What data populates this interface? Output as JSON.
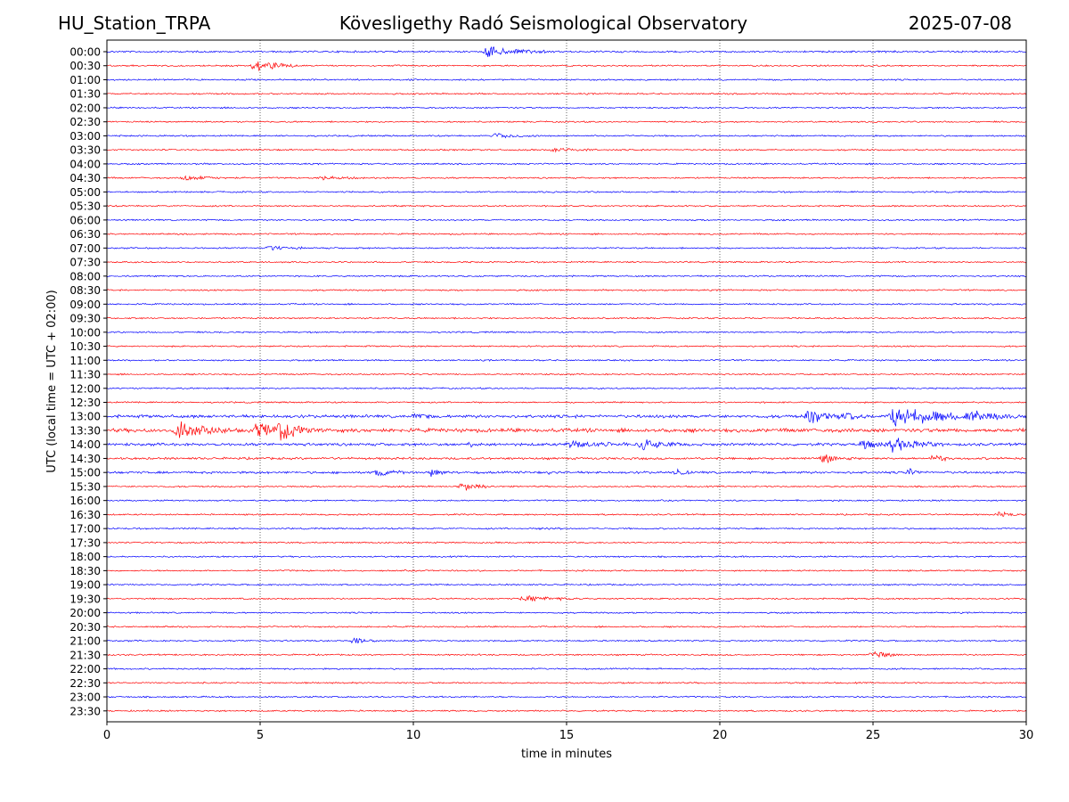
{
  "header": {
    "station": "HU_Station_TRPA",
    "observatory": "Kövesligethy Radó Seismological Observatory",
    "date": "2025-07-08"
  },
  "chart_data": {
    "type": "line",
    "title": "Kövesligethy Radó Seismological Observatory",
    "xlabel": "time in minutes",
    "ylabel": "UTC (local time = UTC + 02:00)",
    "xlim": [
      0,
      30
    ],
    "x_ticks": [
      0,
      5,
      10,
      15,
      20,
      25,
      30
    ],
    "vertical_gridlines_at_minutes": [
      5,
      10,
      15,
      20,
      25
    ],
    "grid": "vertical dotted lines only",
    "colors": {
      "even_hour_trace": "#0000ff",
      "half_hour_trace": "#ff0000",
      "grid": "#000000"
    },
    "rows": [
      "00:00",
      "00:30",
      "01:00",
      "01:30",
      "02:00",
      "02:30",
      "03:00",
      "03:30",
      "04:00",
      "04:30",
      "05:00",
      "05:30",
      "06:00",
      "06:30",
      "07:00",
      "07:30",
      "08:00",
      "08:30",
      "09:00",
      "09:30",
      "10:00",
      "10:30",
      "11:00",
      "11:30",
      "12:00",
      "12:30",
      "13:00",
      "13:30",
      "14:00",
      "14:30",
      "15:00",
      "15:30",
      "16:00",
      "16:30",
      "17:00",
      "17:30",
      "18:00",
      "18:30",
      "19:00",
      "19:30",
      "20:00",
      "20:30",
      "21:00",
      "21:30",
      "22:00",
      "22:30",
      "23:00",
      "23:30"
    ],
    "noise_amplitude_by_row": [
      1.2,
      1,
      1,
      1,
      1,
      1,
      1,
      1,
      1,
      1,
      1,
      1,
      1,
      1,
      1,
      1,
      1,
      1,
      1,
      1,
      1,
      1,
      1,
      1,
      1,
      1,
      2.0,
      2.5,
      1.8,
      1.5,
      1.5,
      1,
      1,
      1,
      1,
      1,
      1,
      1,
      1,
      1,
      1,
      1,
      1,
      1,
      1,
      1,
      1,
      1
    ],
    "events": [
      {
        "row": 0,
        "start_min": 12.3,
        "duration_min": 2.0,
        "amplitude": 8
      },
      {
        "row": 1,
        "start_min": 4.7,
        "duration_min": 1.8,
        "amplitude": 7
      },
      {
        "row": 6,
        "start_min": 12.6,
        "duration_min": 1.5,
        "amplitude": 4
      },
      {
        "row": 7,
        "start_min": 14.5,
        "duration_min": 1.5,
        "amplitude": 3
      },
      {
        "row": 9,
        "start_min": 2.4,
        "duration_min": 1.5,
        "amplitude": 4
      },
      {
        "row": 9,
        "start_min": 6.9,
        "duration_min": 1.5,
        "amplitude": 3
      },
      {
        "row": 14,
        "start_min": 5.2,
        "duration_min": 1.2,
        "amplitude": 4
      },
      {
        "row": 26,
        "start_min": 10.0,
        "duration_min": 0.6,
        "amplitude": 4
      },
      {
        "row": 26,
        "start_min": 22.8,
        "duration_min": 1.2,
        "amplitude": 12
      },
      {
        "row": 26,
        "start_min": 24.0,
        "duration_min": 0.8,
        "amplitude": 8
      },
      {
        "row": 26,
        "start_min": 25.5,
        "duration_min": 3.0,
        "amplitude": 16
      },
      {
        "row": 26,
        "start_min": 28.0,
        "duration_min": 2.0,
        "amplitude": 7
      },
      {
        "row": 27,
        "start_min": 2.2,
        "duration_min": 1.8,
        "amplitude": 16
      },
      {
        "row": 27,
        "start_min": 4.8,
        "duration_min": 1.5,
        "amplitude": 10
      },
      {
        "row": 27,
        "start_min": 5.5,
        "duration_min": 1.2,
        "amplitude": 16
      },
      {
        "row": 28,
        "start_min": 11.8,
        "duration_min": 0.5,
        "amplitude": 6
      },
      {
        "row": 28,
        "start_min": 15.0,
        "duration_min": 2.0,
        "amplitude": 5
      },
      {
        "row": 28,
        "start_min": 17.3,
        "duration_min": 1.5,
        "amplitude": 8
      },
      {
        "row": 28,
        "start_min": 24.6,
        "duration_min": 0.8,
        "amplitude": 9
      },
      {
        "row": 28,
        "start_min": 25.5,
        "duration_min": 1.8,
        "amplitude": 10
      },
      {
        "row": 29,
        "start_min": 23.3,
        "duration_min": 1.0,
        "amplitude": 7
      },
      {
        "row": 29,
        "start_min": 26.9,
        "duration_min": 0.8,
        "amplitude": 6
      },
      {
        "row": 30,
        "start_min": 8.7,
        "duration_min": 1.0,
        "amplitude": 7
      },
      {
        "row": 30,
        "start_min": 10.5,
        "duration_min": 0.6,
        "amplitude": 7
      },
      {
        "row": 30,
        "start_min": 14.4,
        "duration_min": 0.3,
        "amplitude": 6
      },
      {
        "row": 30,
        "start_min": 18.5,
        "duration_min": 0.6,
        "amplitude": 6
      },
      {
        "row": 30,
        "start_min": 26.1,
        "duration_min": 0.5,
        "amplitude": 9
      },
      {
        "row": 31,
        "start_min": 11.5,
        "duration_min": 1.0,
        "amplitude": 7
      },
      {
        "row": 33,
        "start_min": 29.0,
        "duration_min": 1.0,
        "amplitude": 4
      },
      {
        "row": 34,
        "start_min": 14.1,
        "duration_min": 0.8,
        "amplitude": 3
      },
      {
        "row": 39,
        "start_min": 13.5,
        "duration_min": 2.0,
        "amplitude": 4
      },
      {
        "row": 42,
        "start_min": 8.0,
        "duration_min": 0.8,
        "amplitude": 6
      },
      {
        "row": 43,
        "start_min": 24.9,
        "duration_min": 1.0,
        "amplitude": 6
      }
    ]
  }
}
